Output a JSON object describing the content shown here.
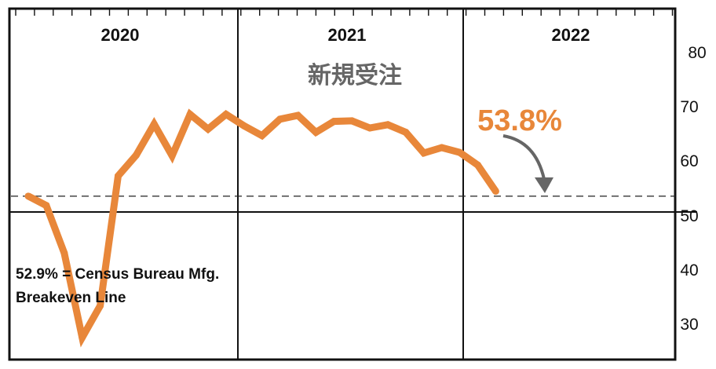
{
  "chart_data": {
    "type": "line",
    "title": "",
    "subtitle": "新規受注",
    "year_labels": [
      "2020",
      "2021",
      "2022"
    ],
    "y_ticks": [
      "80",
      "70",
      "60",
      "50",
      "40",
      "30"
    ],
    "ylim": [
      25,
      85
    ],
    "x": [
      "2020-01",
      "2020-02",
      "2020-03",
      "2020-04",
      "2020-05",
      "2020-06",
      "2020-07",
      "2020-08",
      "2020-09",
      "2020-10",
      "2020-11",
      "2020-12",
      "2021-01",
      "2021-02",
      "2021-03",
      "2021-04",
      "2021-05",
      "2021-06",
      "2021-07",
      "2021-08",
      "2021-09",
      "2021-10",
      "2021-11",
      "2021-12",
      "2022-01",
      "2022-02",
      "2022-03"
    ],
    "series": [
      {
        "values": [
          52.9,
          51.2,
          42.5,
          27.0,
          32.8,
          56.6,
          60.4,
          66.1,
          60.3,
          67.9,
          65.2,
          67.9,
          65.8,
          64.0,
          67.0,
          67.7,
          64.6,
          66.6,
          66.7,
          65.4,
          66.0,
          64.6,
          60.8,
          61.8,
          60.9,
          58.6,
          53.8
        ]
      }
    ],
    "breakeven": 52.9,
    "breakeven_note_line1": "52.9% = Census Bureau Mfg.",
    "breakeven_note_line2": "Breakeven Line",
    "callout": "53.8%",
    "line_color": "#E8873A",
    "arrow_color": "#666666",
    "grid": true
  }
}
